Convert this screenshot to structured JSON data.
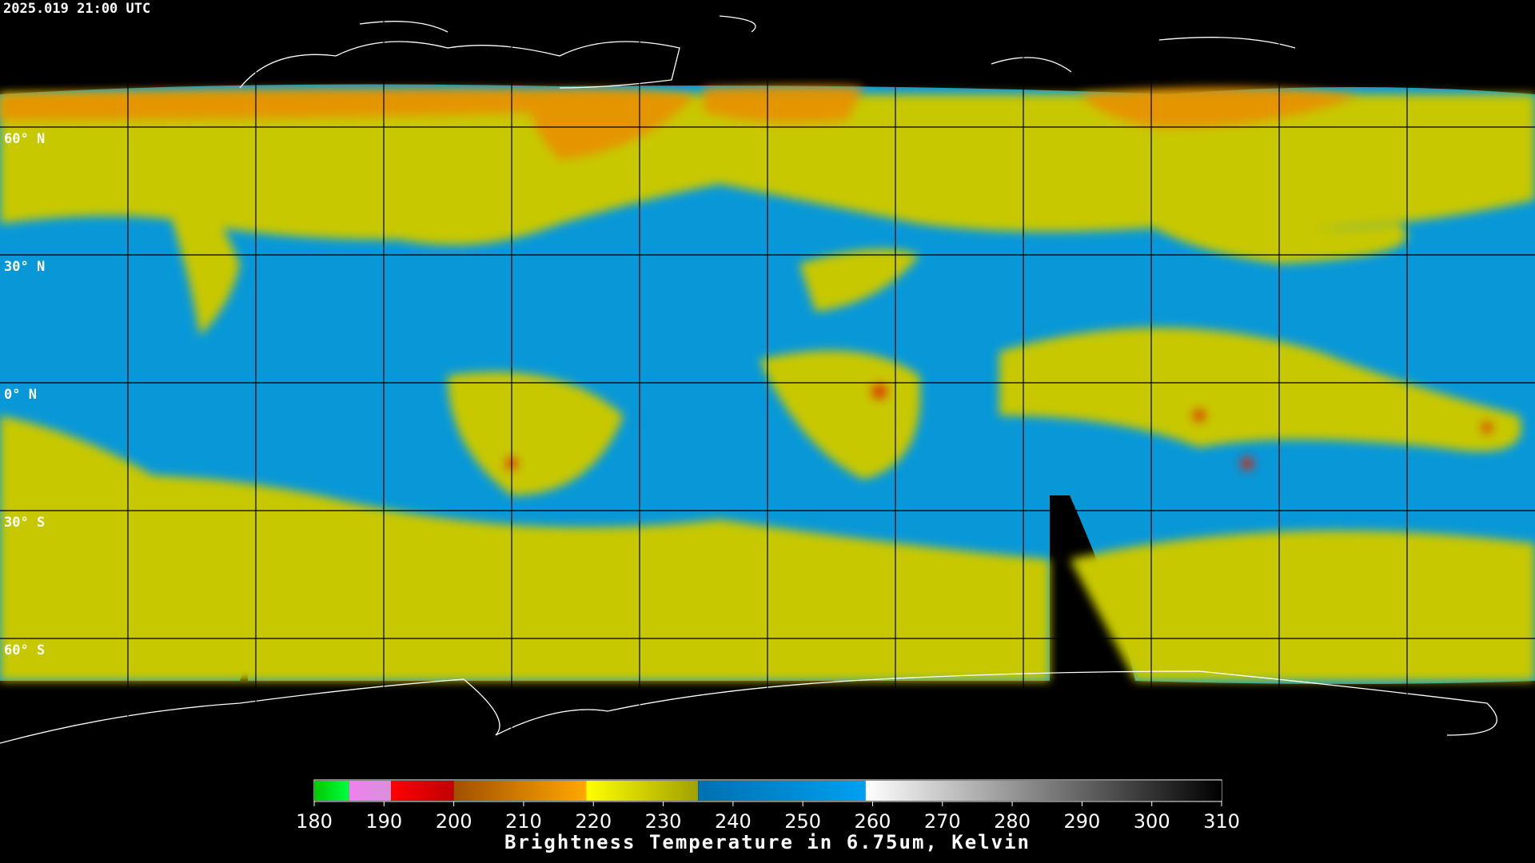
{
  "header": {
    "title": "2025.019 21:00 UTC"
  },
  "map": {
    "latitude_labels": [
      "60° N",
      "30° N",
      "0° N",
      "30° S",
      "60° S"
    ]
  },
  "colorbar": {
    "label": "Brightness Temperature in 6.75um, Kelvin",
    "range": [
      180,
      310
    ],
    "ticks": [
      180,
      190,
      200,
      210,
      220,
      230,
      240,
      250,
      260,
      270,
      280,
      290,
      300,
      310
    ],
    "segments": [
      {
        "from": 180,
        "to": 185,
        "colors": [
          "#00c800",
          "#00ff40"
        ]
      },
      {
        "from": 185,
        "to": 191,
        "colors": [
          "#f080f0",
          "#d890d8"
        ]
      },
      {
        "from": 191,
        "to": 200,
        "colors": [
          "#ff0000",
          "#c00000"
        ]
      },
      {
        "from": 200,
        "to": 219,
        "colors": [
          "#a05000",
          "#ffa800"
        ]
      },
      {
        "from": 219,
        "to": 235,
        "colors": [
          "#ffff00",
          "#a0a000"
        ]
      },
      {
        "from": 235,
        "to": 259,
        "colors": [
          "#0070b0",
          "#00a0f0"
        ]
      },
      {
        "from": 259,
        "to": 310,
        "colors": [
          "#ffffff",
          "#000000"
        ]
      }
    ]
  }
}
